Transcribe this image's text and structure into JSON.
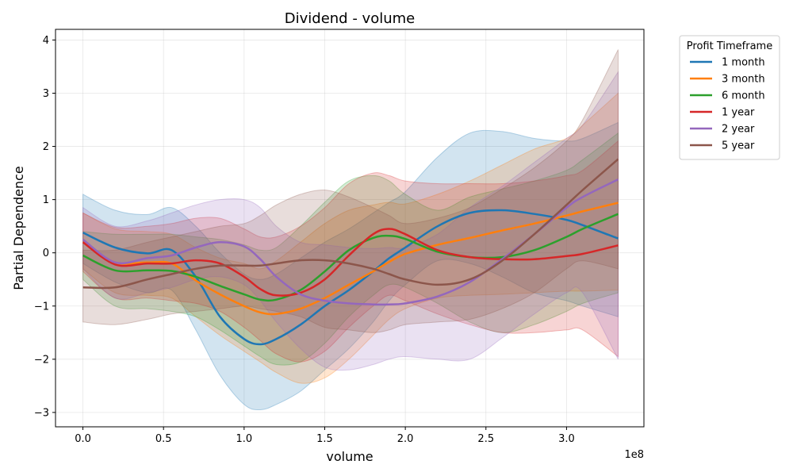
{
  "chart_data": {
    "type": "line",
    "title": "Dividend - volume",
    "xlabel": "volume",
    "ylabel": "Partial Dependence",
    "x_offset_text": "1e8",
    "xlim": [
      -0.17,
      3.48
    ],
    "ylim": [
      -3.27,
      4.2
    ],
    "x_ticks": [
      0,
      0.5,
      1.0,
      1.5,
      2.0,
      2.5,
      3.0
    ],
    "x_tick_labels": [
      "0.0",
      "0.5",
      "1.0",
      "1.5",
      "2.0",
      "2.5",
      "3.0"
    ],
    "y_ticks": [
      -3,
      -2,
      -1,
      0,
      1,
      2,
      3,
      4
    ],
    "y_tick_labels": [
      "−3",
      "−2",
      "−1",
      "0",
      "1",
      "2",
      "3",
      "4"
    ],
    "grid": true,
    "legend": {
      "title": "Profit Timeframe",
      "placement": "outside-right"
    },
    "x": [
      0,
      0.2,
      0.4,
      0.55,
      0.7,
      0.85,
      1.0,
      1.1,
      1.2,
      1.35,
      1.5,
      1.65,
      1.8,
      1.9,
      2.0,
      2.2,
      2.4,
      2.6,
      2.8,
      3.0,
      3.1,
      3.32
    ],
    "series": [
      {
        "name": "1 month",
        "color": "#1f77b4",
        "y": [
          0.38,
          0.1,
          -0.01,
          0.05,
          -0.45,
          -1.2,
          -1.62,
          -1.72,
          -1.62,
          -1.35,
          -1.0,
          -0.7,
          -0.35,
          -0.1,
          0.1,
          0.5,
          0.75,
          0.8,
          0.73,
          0.62,
          0.52,
          0.27
        ],
        "lower": [
          -0.2,
          -0.55,
          -0.75,
          -0.7,
          -1.45,
          -2.3,
          -2.85,
          -2.95,
          -2.85,
          -2.6,
          -2.2,
          -1.8,
          -1.3,
          -0.9,
          -0.6,
          -0.15,
          -0.2,
          -0.45,
          -0.75,
          -0.9,
          -1.0,
          -1.2
        ],
        "upper": [
          1.1,
          0.8,
          0.72,
          0.85,
          0.5,
          0.0,
          -0.4,
          -0.5,
          -0.4,
          -0.1,
          0.2,
          0.45,
          0.75,
          0.95,
          1.15,
          1.8,
          2.25,
          2.28,
          2.15,
          2.1,
          2.15,
          2.45
        ]
      },
      {
        "name": "3 month",
        "color": "#ff7f0e",
        "y": [
          0.2,
          -0.18,
          -0.18,
          -0.2,
          -0.52,
          -0.78,
          -1.0,
          -1.12,
          -1.15,
          -1.05,
          -0.85,
          -0.6,
          -0.35,
          -0.17,
          -0.02,
          0.15,
          0.28,
          0.42,
          0.55,
          0.7,
          0.78,
          0.94
        ],
        "lower": [
          -0.3,
          -0.75,
          -0.8,
          -0.85,
          -1.2,
          -1.55,
          -1.85,
          -2.05,
          -2.25,
          -2.45,
          -2.35,
          -2.0,
          -1.55,
          -1.25,
          -1.05,
          -0.85,
          -0.8,
          -0.78,
          -0.75,
          -0.72,
          -0.72,
          -0.7
        ],
        "upper": [
          0.75,
          0.45,
          0.4,
          0.35,
          0.1,
          -0.1,
          -0.2,
          -0.3,
          -0.15,
          0.2,
          0.55,
          0.8,
          0.9,
          0.95,
          0.92,
          1.1,
          1.35,
          1.65,
          1.95,
          2.15,
          2.4,
          3.0
        ]
      },
      {
        "name": "6 month",
        "color": "#2ca02c",
        "y": [
          -0.05,
          -0.33,
          -0.33,
          -0.34,
          -0.45,
          -0.62,
          -0.78,
          -0.88,
          -0.88,
          -0.7,
          -0.35,
          0.05,
          0.28,
          0.32,
          0.26,
          0.02,
          -0.08,
          -0.08,
          0.05,
          0.3,
          0.45,
          0.73
        ],
        "lower": [
          -0.5,
          -1.0,
          -1.05,
          -1.1,
          -1.2,
          -1.45,
          -1.75,
          -1.95,
          -2.1,
          -2.05,
          -1.7,
          -1.2,
          -0.8,
          -0.6,
          -0.65,
          -0.95,
          -1.3,
          -1.5,
          -1.35,
          -1.1,
          -0.95,
          -0.75
        ],
        "upper": [
          0.4,
          0.35,
          0.35,
          0.35,
          0.3,
          0.25,
          0.15,
          0.05,
          0.1,
          0.5,
          0.95,
          1.35,
          1.45,
          1.35,
          1.1,
          0.8,
          1.05,
          1.2,
          1.35,
          1.55,
          1.75,
          2.25
        ]
      },
      {
        "name": "1 year",
        "color": "#d62728",
        "y": [
          0.2,
          -0.22,
          -0.2,
          -0.2,
          -0.14,
          -0.2,
          -0.45,
          -0.68,
          -0.8,
          -0.75,
          -0.5,
          -0.05,
          0.35,
          0.45,
          0.35,
          0.05,
          -0.08,
          -0.12,
          -0.12,
          -0.06,
          -0.02,
          0.14
        ],
        "lower": [
          -0.35,
          -0.85,
          -0.85,
          -0.9,
          -0.95,
          -1.1,
          -1.4,
          -1.65,
          -1.9,
          -2.05,
          -1.85,
          -1.4,
          -1.0,
          -0.8,
          -0.9,
          -1.15,
          -1.35,
          -1.5,
          -1.5,
          -1.45,
          -1.45,
          -1.95
        ],
        "upper": [
          0.75,
          0.48,
          0.5,
          0.55,
          0.65,
          0.65,
          0.45,
          0.3,
          0.3,
          0.5,
          0.85,
          1.3,
          1.5,
          1.45,
          1.35,
          1.3,
          1.3,
          1.3,
          1.35,
          1.45,
          1.55,
          2.1
        ]
      },
      {
        "name": "2 year",
        "color": "#9467bd",
        "y": [
          0.25,
          -0.18,
          -0.1,
          -0.05,
          0.1,
          0.2,
          0.12,
          -0.12,
          -0.45,
          -0.78,
          -0.9,
          -0.95,
          -0.97,
          -0.97,
          -0.95,
          -0.82,
          -0.55,
          -0.12,
          0.35,
          0.85,
          1.05,
          1.38
        ],
        "lower": [
          -0.3,
          -0.85,
          -0.75,
          -0.65,
          -0.5,
          -0.45,
          -0.6,
          -0.9,
          -1.3,
          -1.8,
          -2.15,
          -2.2,
          -2.1,
          -2.0,
          -1.95,
          -2.0,
          -2.0,
          -1.6,
          -1.15,
          -0.75,
          -0.75,
          -2.0
        ],
        "upper": [
          0.85,
          0.5,
          0.6,
          0.75,
          0.9,
          1.0,
          1.0,
          0.85,
          0.5,
          0.2,
          0.15,
          0.1,
          0.08,
          0.1,
          0.1,
          0.35,
          0.85,
          1.25,
          1.7,
          2.15,
          2.4,
          3.4
        ]
      },
      {
        "name": "5 year",
        "color": "#8c564b",
        "y": [
          -0.65,
          -0.65,
          -0.5,
          -0.4,
          -0.3,
          -0.24,
          -0.24,
          -0.24,
          -0.2,
          -0.14,
          -0.14,
          -0.2,
          -0.3,
          -0.4,
          -0.5,
          -0.6,
          -0.5,
          -0.15,
          0.35,
          0.9,
          1.18,
          1.76
        ],
        "lower": [
          -1.3,
          -1.35,
          -1.25,
          -1.15,
          -1.1,
          -1.05,
          -1.0,
          -1.05,
          -1.1,
          -1.2,
          -1.4,
          -1.45,
          -1.5,
          -1.45,
          -1.35,
          -1.3,
          -1.25,
          -1.05,
          -0.75,
          -0.3,
          -0.15,
          -0.3
        ],
        "upper": [
          0.05,
          0.05,
          0.2,
          0.3,
          0.4,
          0.5,
          0.55,
          0.7,
          0.9,
          1.1,
          1.18,
          1.05,
          0.85,
          0.7,
          0.55,
          0.65,
          0.85,
          1.2,
          1.6,
          2.1,
          2.5,
          3.82
        ]
      }
    ]
  }
}
